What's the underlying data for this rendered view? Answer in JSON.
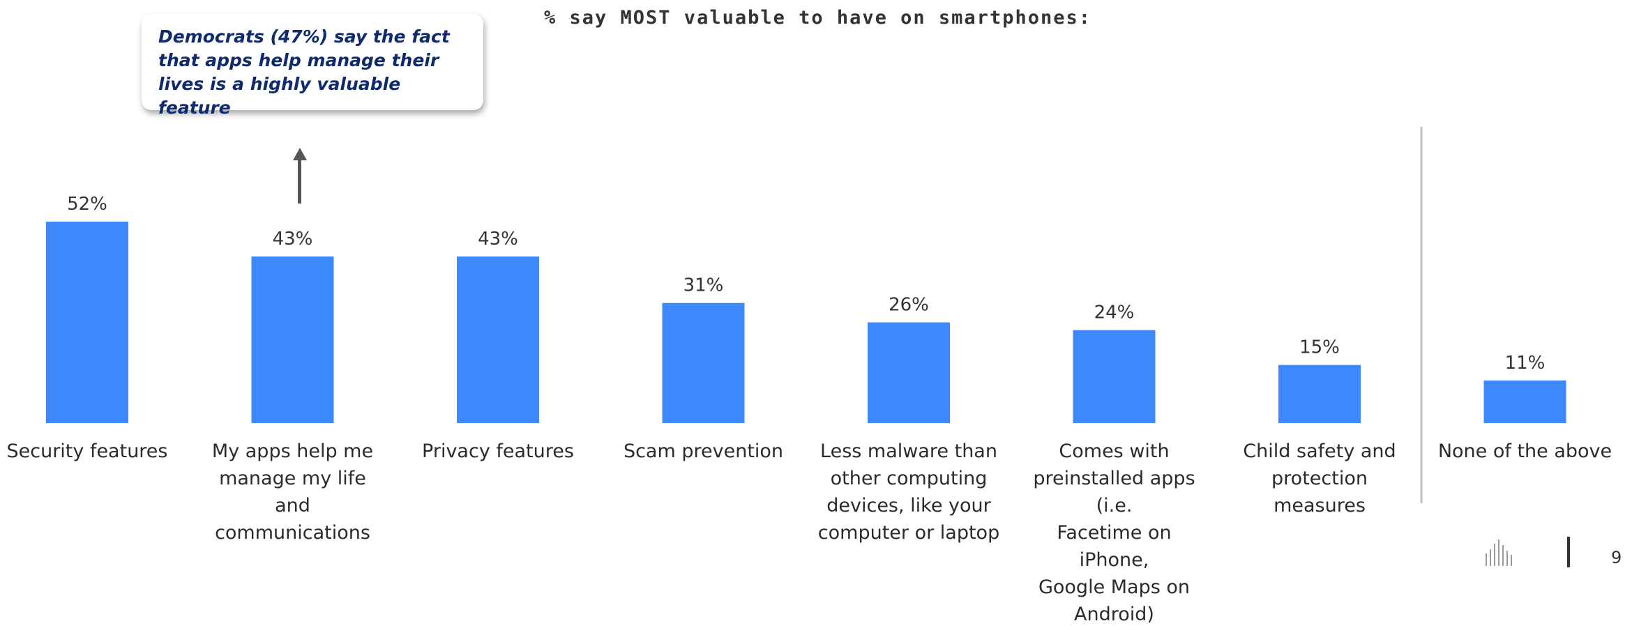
{
  "title": "% say MOST valuable to have on smartphones:",
  "callout": {
    "line1": "Democrats (47%) say the fact",
    "line2": "that apps help manage their",
    "line3": "lives is a highly valuable feature"
  },
  "page_number": "9",
  "colors": {
    "bar": "#3d88fb",
    "divider": "#bfbfbf",
    "callout_text": "#102a6b"
  },
  "chart_data": {
    "type": "bar",
    "title": "% say MOST valuable to have on smartphones:",
    "xlabel": "",
    "ylabel": "",
    "ylim": [
      0,
      52
    ],
    "grid": false,
    "categories": [
      [
        "Security features"
      ],
      [
        "My apps help me",
        "manage my life and",
        "communications"
      ],
      [
        "Privacy features"
      ],
      [
        "Scam prevention"
      ],
      [
        "Less malware than",
        "other computing",
        "devices, like your",
        "computer or laptop"
      ],
      [
        "Comes with",
        "preinstalled apps (i.e.",
        "Facetime on iPhone,",
        "Google Maps on",
        "Android)"
      ],
      [
        "Child safety and",
        "protection measures"
      ],
      [
        "None of the above"
      ]
    ],
    "values": [
      52,
      43,
      43,
      31,
      26,
      24,
      15,
      11
    ],
    "value_labels": [
      "52%",
      "43%",
      "43%",
      "31%",
      "26%",
      "24%",
      "15%",
      "11%"
    ]
  }
}
